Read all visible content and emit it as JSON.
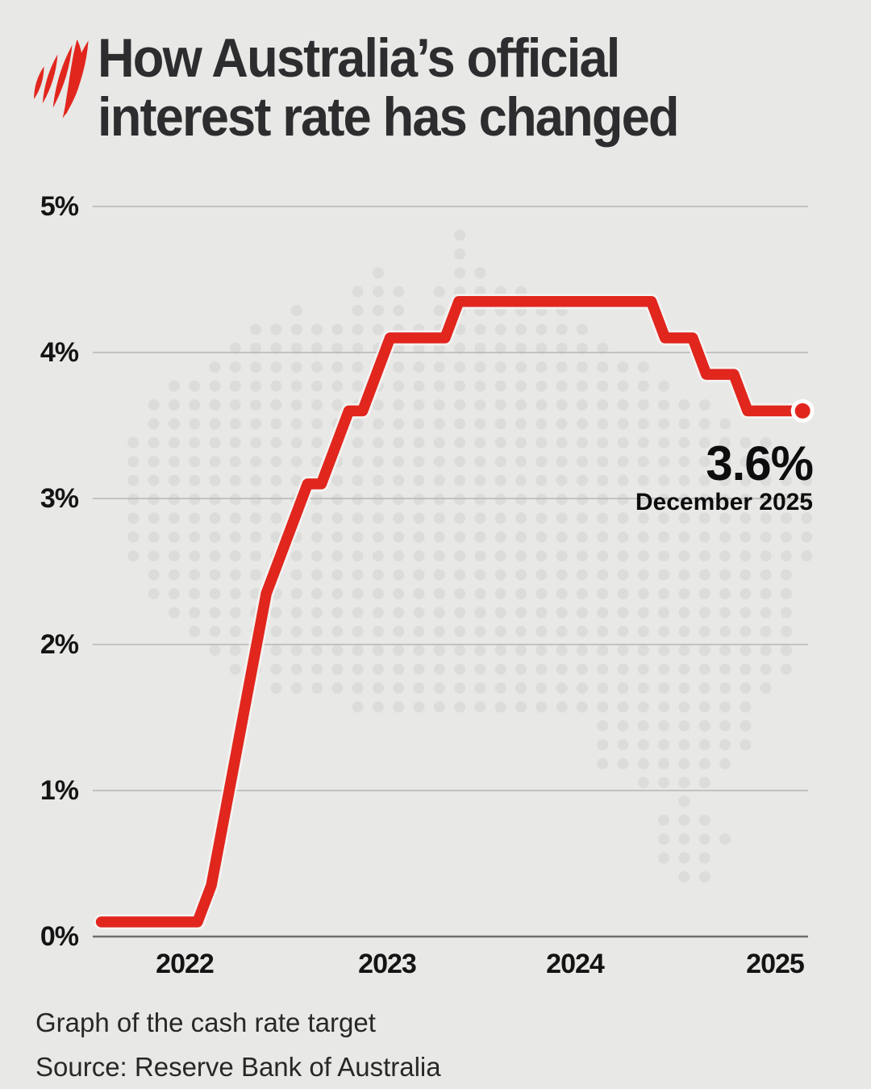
{
  "header": {
    "logo": "sbs-mercator",
    "title_line1": "How Australia’s official",
    "title_line2": "interest rate has changed"
  },
  "chart_data": {
    "type": "line",
    "title": "How Australia’s official interest rate has changed",
    "series_name": "Cash rate target",
    "unit": "%",
    "ylim": [
      0,
      5
    ],
    "grid": true,
    "legend": "none",
    "background_motif": "australia-dot-map",
    "y_ticks": [
      {
        "label": "5%",
        "value": 5
      },
      {
        "label": "4%",
        "value": 4
      },
      {
        "label": "3%",
        "value": 3
      },
      {
        "label": "2%",
        "value": 2
      },
      {
        "label": "1%",
        "value": 1
      },
      {
        "label": "0%",
        "value": 0
      }
    ],
    "x_ticks": [
      "2022",
      "2023",
      "2024",
      "2025"
    ],
    "points": [
      [
        "2021-09",
        0.1
      ],
      [
        "2021-10",
        0.1
      ],
      [
        "2021-11",
        0.1
      ],
      [
        "2021-12",
        0.1
      ],
      [
        "2022-01",
        0.1
      ],
      [
        "2022-02",
        0.1
      ],
      [
        "2022-03",
        0.1
      ],
      [
        "2022-04",
        0.1
      ],
      [
        "2022-05",
        0.35
      ],
      [
        "2022-06",
        0.85
      ],
      [
        "2022-07",
        1.35
      ],
      [
        "2022-08",
        1.85
      ],
      [
        "2022-09",
        2.35
      ],
      [
        "2022-10",
        2.6
      ],
      [
        "2022-11",
        2.85
      ],
      [
        "2022-12",
        3.1
      ],
      [
        "2023-01",
        3.1
      ],
      [
        "2023-02",
        3.35
      ],
      [
        "2023-03",
        3.6
      ],
      [
        "2023-04",
        3.6
      ],
      [
        "2023-05",
        3.85
      ],
      [
        "2023-06",
        4.1
      ],
      [
        "2023-07",
        4.1
      ],
      [
        "2023-08",
        4.1
      ],
      [
        "2023-09",
        4.1
      ],
      [
        "2023-10",
        4.1
      ],
      [
        "2023-11",
        4.35
      ],
      [
        "2023-12",
        4.35
      ],
      [
        "2024-01",
        4.35
      ],
      [
        "2024-02",
        4.35
      ],
      [
        "2024-03",
        4.35
      ],
      [
        "2024-04",
        4.35
      ],
      [
        "2024-05",
        4.35
      ],
      [
        "2024-06",
        4.35
      ],
      [
        "2024-07",
        4.35
      ],
      [
        "2024-08",
        4.35
      ],
      [
        "2024-09",
        4.35
      ],
      [
        "2024-10",
        4.35
      ],
      [
        "2024-11",
        4.35
      ],
      [
        "2024-12",
        4.35
      ],
      [
        "2025-01",
        4.35
      ],
      [
        "2025-02",
        4.1
      ],
      [
        "2025-03",
        4.1
      ],
      [
        "2025-04",
        4.1
      ],
      [
        "2025-05",
        3.85
      ],
      [
        "2025-06",
        3.85
      ],
      [
        "2025-07",
        3.85
      ],
      [
        "2025-08",
        3.6
      ],
      [
        "2025-09",
        3.6
      ],
      [
        "2025-10",
        3.6
      ],
      [
        "2025-11",
        3.6
      ],
      [
        "2025-12",
        3.6
      ]
    ],
    "end_point": {
      "date": "2025-12",
      "value": 3.6
    },
    "annotation": {
      "value_label": "3.6%",
      "date_label": "December 2025"
    },
    "colors": {
      "line": "#e1261d",
      "line_casing": "#f6f5f3",
      "background": "#e8e8e6",
      "dot_map": "#dcdcda",
      "grid": "#b5b5b3",
      "zero_axis": "#6f6f6f",
      "text": "#141414"
    }
  },
  "footer": {
    "caption": "Graph of the cash rate target",
    "source": "Source: Reserve Bank of Australia"
  }
}
